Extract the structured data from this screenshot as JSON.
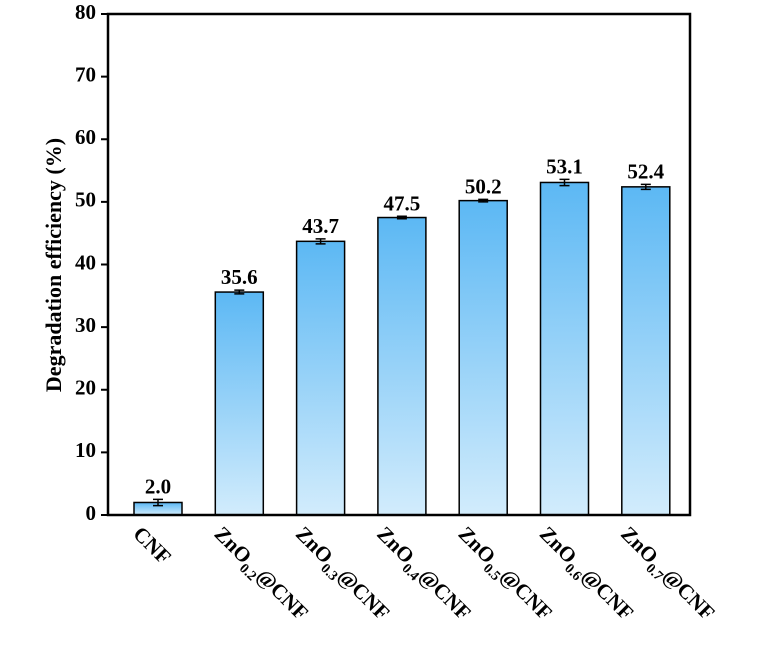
{
  "chart_data": {
    "type": "bar",
    "y_label": "Degradation efficiency (%)",
    "categories": [
      "CNF",
      "ZnO0.2@CNF",
      "ZnO0.3@CNF",
      "ZnO0.4@CNF",
      "ZnO0.5@CNF",
      "ZnO0.6@CNF",
      "ZnO0.7@CNF"
    ],
    "values": [
      2.0,
      35.6,
      43.7,
      47.5,
      50.2,
      53.1,
      52.4
    ],
    "value_labels": [
      "2.0",
      "35.6",
      "43.7",
      "47.5",
      "50.2",
      "53.1",
      "52.4"
    ],
    "errors": [
      0.5,
      0.3,
      0.4,
      0.2,
      0.2,
      0.5,
      0.4
    ],
    "color": "#5cb8f4",
    "ylim": [
      0,
      80
    ],
    "yticks": [
      0,
      10,
      20,
      30,
      40,
      50,
      60,
      70,
      80
    ]
  }
}
